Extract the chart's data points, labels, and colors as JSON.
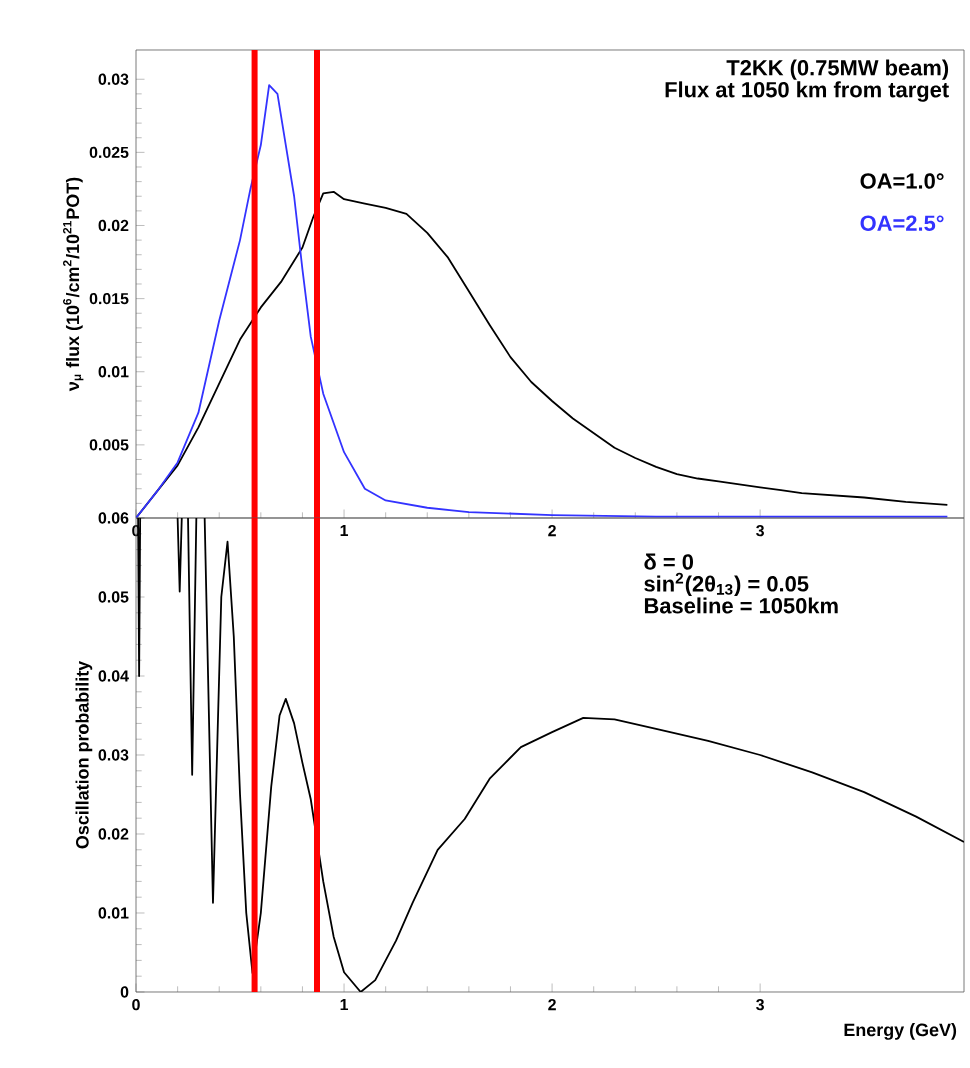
{
  "chart_data": [
    {
      "type": "line",
      "ylabel": "ν$_{μ}$ flux (10$^{6}$/cm$^{2}$/10$^{21}$POT)",
      "annotations": [
        "T2KK (0.75MW beam)",
        "Flux at 1050 km from target"
      ],
      "xlim": [
        0,
        3.98
      ],
      "ylim": [
        0,
        0.032
      ],
      "xticks": [
        0,
        1,
        2,
        3
      ],
      "yticks": [
        {
          "value": 0,
          "label": null
        },
        0.005,
        0.01,
        0.015,
        0.02,
        0.025,
        0.03
      ],
      "ref_lines": [
        {
          "axis": "x",
          "value": 0.57,
          "color": "#ff0000"
        },
        {
          "axis": "x",
          "value": 0.87,
          "color": "#ff0000"
        }
      ],
      "series": [
        {
          "name": "OA=1.0°",
          "color": "#000000",
          "x": [
            0,
            0.1,
            0.2,
            0.3,
            0.4,
            0.5,
            0.6,
            0.7,
            0.8,
            0.85,
            0.9,
            0.95,
            1.0,
            1.1,
            1.2,
            1.3,
            1.4,
            1.5,
            1.6,
            1.7,
            1.8,
            1.9,
            2.0,
            2.1,
            2.2,
            2.3,
            2.4,
            2.5,
            2.6,
            2.7,
            2.8,
            2.9,
            3.0,
            3.1,
            3.2,
            3.3,
            3.5,
            3.7,
            3.9
          ],
          "values": [
            0,
            0.0018,
            0.0036,
            0.0062,
            0.0092,
            0.0122,
            0.0144,
            0.0162,
            0.0185,
            0.0205,
            0.0222,
            0.0223,
            0.0218,
            0.0215,
            0.0212,
            0.0208,
            0.0195,
            0.0178,
            0.0155,
            0.0132,
            0.011,
            0.0093,
            0.008,
            0.0068,
            0.0058,
            0.0048,
            0.0041,
            0.0035,
            0.003,
            0.0027,
            0.0025,
            0.0023,
            0.0021,
            0.0019,
            0.0017,
            0.0016,
            0.0014,
            0.0011,
            0.0009
          ]
        },
        {
          "name": "OA=2.5°",
          "color": "#3333ff",
          "x": [
            0,
            0.1,
            0.2,
            0.3,
            0.4,
            0.5,
            0.55,
            0.6,
            0.64,
            0.68,
            0.72,
            0.76,
            0.8,
            0.84,
            0.9,
            1.0,
            1.1,
            1.2,
            1.4,
            1.6,
            2.0,
            2.5,
            3.0,
            3.9
          ],
          "values": [
            0,
            0.0018,
            0.0038,
            0.0072,
            0.0135,
            0.019,
            0.0225,
            0.0255,
            0.0296,
            0.029,
            0.0255,
            0.022,
            0.017,
            0.0124,
            0.0085,
            0.0045,
            0.002,
            0.0012,
            0.0007,
            0.0004,
            0.0002,
            0.0001,
            0.0001,
            0.0001
          ]
        }
      ]
    },
    {
      "type": "line",
      "xlabel": "Energy (GeV)",
      "ylabel": "Oscillation probability",
      "annotations": [
        "δ = 0",
        "sin$^{2}$(2θ$_{13}$) = 0.05",
        "Baseline = 1050km"
      ],
      "xlim": [
        0,
        3.98
      ],
      "ylim": [
        0,
        0.06
      ],
      "xticks": [
        0,
        1,
        2,
        3
      ],
      "yticks": [
        0,
        0.01,
        0.02,
        0.03,
        0.04,
        0.05,
        0.06
      ],
      "ref_lines": [
        {
          "axis": "x",
          "value": 0.57,
          "color": "#ff0000"
        },
        {
          "axis": "x",
          "value": 0.87,
          "color": "#ff0000"
        }
      ],
      "series": [
        {
          "color": "#000000",
          "x": [
            0.01,
            0.015,
            0.02,
            0.03,
            0.2,
            0.21,
            0.22,
            0.23,
            0.25,
            0.27,
            0.29,
            0.3,
            0.33,
            0.37,
            0.41,
            0.44,
            0.47,
            0.5,
            0.53,
            0.56,
            0.6,
            0.65,
            0.69,
            0.72,
            0.76,
            0.8,
            0.84,
            0.9,
            0.95,
            1.0,
            1.08,
            1.15,
            1.25,
            1.33,
            1.45,
            1.58,
            1.7,
            1.85,
            2.0,
            2.15,
            2.3,
            2.5,
            2.75,
            3.0,
            3.25,
            3.5,
            3.75,
            3.98
          ],
          "values": [
            0.06,
            0.04,
            0.06,
            null,
            0.06,
            0.0507,
            0.06,
            null,
            0.06,
            0.0275,
            0.06,
            null,
            0.06,
            0.0113,
            0.05,
            0.057,
            0.045,
            0.025,
            0.01,
            0.0024,
            0.01,
            0.026,
            0.035,
            0.0371,
            0.034,
            0.029,
            0.0244,
            0.014,
            0.007,
            0.0025,
            0.0,
            0.0015,
            0.0065,
            0.0113,
            0.018,
            0.0219,
            0.027,
            0.031,
            0.0329,
            0.0347,
            0.0345,
            0.0333,
            0.0318,
            0.03,
            0.0278,
            0.0253,
            0.0222,
            0.019
          ]
        }
      ]
    }
  ]
}
